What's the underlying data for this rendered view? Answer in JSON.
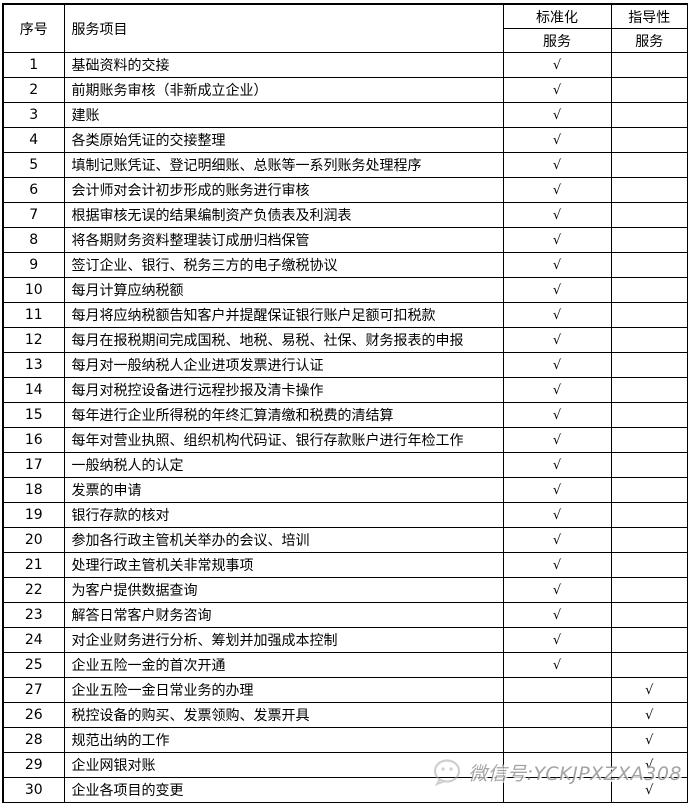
{
  "table": {
    "header": {
      "number": "序号",
      "item": "服务项目",
      "standardized_line1": "标准化",
      "standardized_line2": "服务",
      "guidance_line1": "指导性",
      "guidance_line2": "服务"
    },
    "check_glyph": "√",
    "rows": [
      {
        "no": "1",
        "item": "基础资料的交接",
        "std": true,
        "guide": false
      },
      {
        "no": "2",
        "item": "前期账务审核（非新成立企业）",
        "std": true,
        "guide": false
      },
      {
        "no": "3",
        "item": "建账",
        "std": true,
        "guide": false
      },
      {
        "no": "4",
        "item": "各类原始凭证的交接整理",
        "std": true,
        "guide": false
      },
      {
        "no": "5",
        "item": "填制记账凭证、登记明细账、总账等一系列账务处理程序",
        "std": true,
        "guide": false
      },
      {
        "no": "6",
        "item": "会计师对会计初步形成的账务进行审核",
        "std": true,
        "guide": false
      },
      {
        "no": "7",
        "item": "根据审核无误的结果编制资产负债表及利润表",
        "std": true,
        "guide": false
      },
      {
        "no": "8",
        "item": "将各期财务资料整理装订成册归档保管",
        "std": true,
        "guide": false
      },
      {
        "no": "9",
        "item": "签订企业、银行、税务三方的电子缴税协议",
        "std": true,
        "guide": false
      },
      {
        "no": "10",
        "item": "每月计算应纳税额",
        "std": true,
        "guide": false
      },
      {
        "no": "11",
        "item": "每月将应纳税额告知客户并提醒保证银行账户足额可扣税款",
        "std": true,
        "guide": false
      },
      {
        "no": "12",
        "item": "每月在报税期间完成国税、地税、易税、社保、财务报表的申报",
        "std": true,
        "guide": false
      },
      {
        "no": "13",
        "item": "每月对一般纳税人企业进项发票进行认证",
        "std": true,
        "guide": false
      },
      {
        "no": "14",
        "item": "每月对税控设备进行远程抄报及清卡操作",
        "std": true,
        "guide": false
      },
      {
        "no": "15",
        "item": "每年进行企业所得税的年终汇算清缴和税费的清结算",
        "std": true,
        "guide": false
      },
      {
        "no": "16",
        "item": "每年对营业执照、组织机构代码证、银行存款账户进行年检工作",
        "std": true,
        "guide": false
      },
      {
        "no": "17",
        "item": "一般纳税人的认定",
        "std": true,
        "guide": false
      },
      {
        "no": "18",
        "item": "发票的申请",
        "std": true,
        "guide": false
      },
      {
        "no": "19",
        "item": "银行存款的核对",
        "std": true,
        "guide": false
      },
      {
        "no": "20",
        "item": "参加各行政主管机关举办的会议、培训",
        "std": true,
        "guide": false
      },
      {
        "no": "21",
        "item": "处理行政主管机关非常规事项",
        "std": true,
        "guide": false
      },
      {
        "no": "22",
        "item": "为客户提供数据查询",
        "std": true,
        "guide": false
      },
      {
        "no": "23",
        "item": "解答日常客户财务咨询",
        "std": true,
        "guide": false
      },
      {
        "no": "24",
        "item": "对企业财务进行分析、筹划并加强成本控制",
        "std": true,
        "guide": false
      },
      {
        "no": "25",
        "item": "企业五险一金的首次开通",
        "std": true,
        "guide": false
      },
      {
        "no": "27",
        "item": "企业五险一金日常业务的办理",
        "std": false,
        "guide": true
      },
      {
        "no": "26",
        "item": "税控设备的购买、发票领购、发票开具",
        "std": false,
        "guide": true
      },
      {
        "no": "28",
        "item": "规范出纳的工作",
        "std": false,
        "guide": true
      },
      {
        "no": "29",
        "item": "企业网银对账",
        "std": false,
        "guide": true
      },
      {
        "no": "30",
        "item": "企业各项目的变更",
        "std": false,
        "guide": true
      }
    ]
  },
  "watermark": {
    "text": "微信号:YCKJPXZXA308"
  },
  "colors": {
    "background": "#ffffff",
    "border": "#000000",
    "text": "#000000",
    "watermark_gray": "#9b9b9b"
  }
}
